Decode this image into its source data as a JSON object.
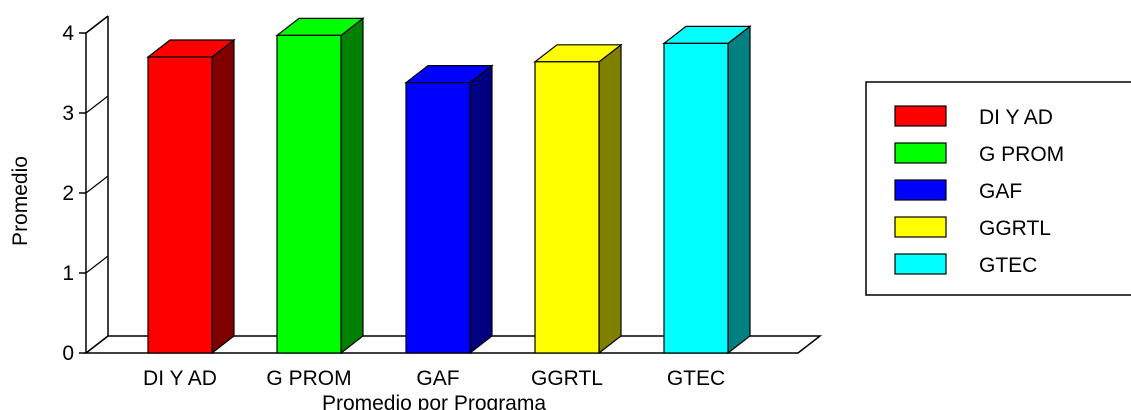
{
  "chart_data": {
    "type": "bar",
    "style": "3d",
    "categories": [
      "DI Y AD",
      "G PROM",
      "GAF",
      "GGRTL",
      "GTEC"
    ],
    "values": [
      3.7,
      3.97,
      3.38,
      3.64,
      3.87
    ],
    "colors": [
      "#ff0000",
      "#00ff00",
      "#0000ff",
      "#ffff00",
      "#00ffff"
    ],
    "side_colors": [
      "#800000",
      "#008000",
      "#000080",
      "#808000",
      "#008080"
    ],
    "title": "",
    "xlabel": "Promedio por Programa",
    "ylabel": "Promedio",
    "ylim": [
      0,
      4
    ],
    "yticks": [
      "0",
      "1",
      "2",
      "3",
      "4"
    ],
    "grid": false,
    "legend": {
      "placement": "right",
      "entries": [
        "DI Y AD",
        "G PROM",
        "GAF",
        "GGRTL",
        "GTEC"
      ]
    }
  }
}
